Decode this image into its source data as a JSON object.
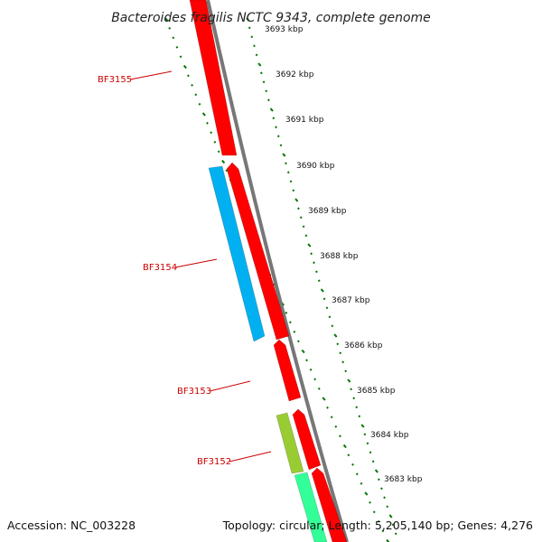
{
  "title": "Bacteroides fragilis NCTC 9343, complete genome",
  "colors": {
    "forward_gene": "#ff0000",
    "reverse_gene_blue": "#00b0f0",
    "reverse_gene_green": "#99cc33",
    "reverse_gene_teal": "#33ff99",
    "backbone": "#777777",
    "ticks": "#007700",
    "label": "#cc0000"
  },
  "ticks": [
    {
      "label": "3693 kbp"
    },
    {
      "label": "3692 kbp"
    },
    {
      "label": "3691 kbp"
    },
    {
      "label": "3690 kbp"
    },
    {
      "label": "3689 kbp"
    },
    {
      "label": "3688 kbp"
    },
    {
      "label": "3687 kbp"
    },
    {
      "label": "3686 kbp"
    },
    {
      "label": "3685 kbp"
    },
    {
      "label": "3684 kbp"
    },
    {
      "label": "3683 kbp"
    }
  ],
  "genes": [
    {
      "name": "BF3155"
    },
    {
      "name": "BF3154"
    },
    {
      "name": "BF3153"
    },
    {
      "name": "BF3152"
    }
  ],
  "footer": {
    "accession": "Accession: NC_003228",
    "summary": "Topology: circular; Length: 5,205,140 bp; Genes: 4,276"
  }
}
